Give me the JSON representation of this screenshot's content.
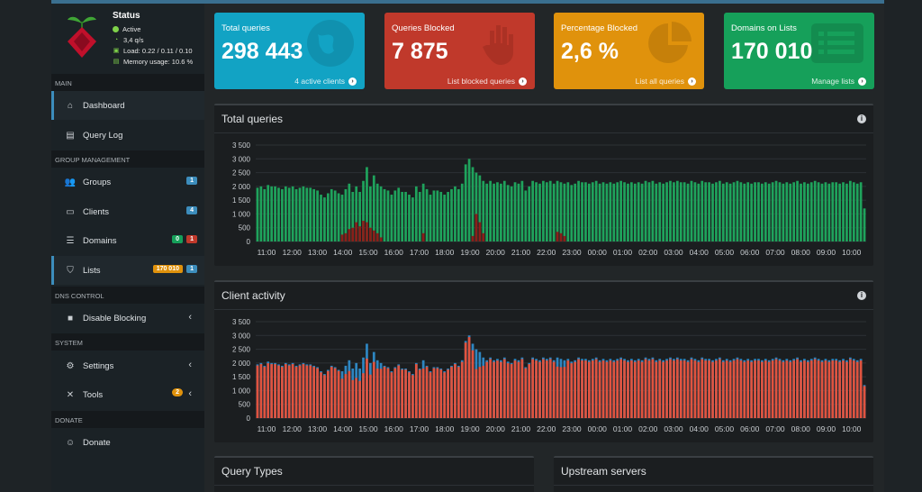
{
  "status": {
    "title": "Status",
    "lines": [
      "Active",
      "3,4 q/s",
      "Load: 0.22 / 0.11 / 0.10",
      "Memory usage: 10.6 %"
    ]
  },
  "sidebar": {
    "sections": {
      "main": "MAIN",
      "group": "GROUP MANAGEMENT",
      "dns": "DNS CONTROL",
      "system": "SYSTEM",
      "donate": "DONATE"
    },
    "items": {
      "dashboard": "Dashboard",
      "querylog": "Query Log",
      "groups": "Groups",
      "groups_badge": "1",
      "clients": "Clients",
      "clients_badge": "4",
      "domains": "Domains",
      "domains_badge_green": "0",
      "domains_badge_red": "1",
      "lists": "Lists",
      "lists_badge_orange": "170 010",
      "lists_badge_blue": "1",
      "disable": "Disable Blocking",
      "settings": "Settings",
      "tools": "Tools",
      "tools_badge": "2",
      "donate": "Donate"
    }
  },
  "stats": {
    "total": {
      "label": "Total queries",
      "value": "298 443",
      "footer": "4 active clients",
      "color": "#12a3c4"
    },
    "blocked": {
      "label": "Queries Blocked",
      "value": "7 875",
      "footer": "List blocked queries",
      "color": "#c0392b"
    },
    "percent": {
      "label": "Percentage Blocked",
      "value": "2,6 %",
      "footer": "List all queries",
      "color": "#e0920c"
    },
    "domains": {
      "label": "Domains on Lists",
      "value": "170 010",
      "footer": "Manage lists",
      "color": "#16a05a"
    }
  },
  "panels": {
    "total_queries": "Total queries",
    "client_activity": "Client activity",
    "query_types": "Query Types",
    "upstream": "Upstream servers"
  },
  "chart_data": [
    {
      "type": "bar",
      "title": "Total queries",
      "stacked": true,
      "ylim": [
        0,
        3500
      ],
      "yticks": [
        "0",
        "500",
        "1 000",
        "1 500",
        "2 000",
        "2 500",
        "3 000",
        "3 500"
      ],
      "xticks": [
        "11:00",
        "12:00",
        "13:00",
        "14:00",
        "15:00",
        "16:00",
        "17:00",
        "18:00",
        "19:00",
        "20:00",
        "21:00",
        "22:00",
        "23:00",
        "00:00",
        "01:00",
        "02:00",
        "03:00",
        "04:00",
        "05:00",
        "06:00",
        "07:00",
        "08:00",
        "09:00",
        "10:00"
      ],
      "series_colors": {
        "permitted": "#1fa35c",
        "blocked": "#8b1f1a"
      },
      "totals": [
        1950,
        2000,
        1900,
        2050,
        2000,
        2000,
        1950,
        1900,
        2000,
        1950,
        2000,
        1900,
        1950,
        2000,
        1950,
        1950,
        1900,
        1850,
        1700,
        1600,
        1750,
        1900,
        1850,
        1750,
        1700,
        1900,
        2100,
        1800,
        2000,
        1800,
        2200,
        2700,
        2000,
        2400,
        2100,
        2000,
        1900,
        1850,
        1700,
        1850,
        1950,
        1800,
        1800,
        1700,
        1600,
        2000,
        1800,
        2100,
        1900,
        1700,
        1850,
        1850,
        1800,
        1700,
        1800,
        1900,
        2000,
        1900,
        2100,
        2800,
        3000,
        2700,
        2500,
        2400,
        2200,
        2100,
        2200,
        2100,
        2150,
        2100,
        2200,
        2050,
        2000,
        2150,
        2100,
        2200,
        1850,
        2000,
        2200,
        2150,
        2100,
        2200,
        2150,
        2200,
        2100,
        2200,
        2150,
        2100,
        2150,
        2050,
        2100,
        2200,
        2150,
        2150,
        2100,
        2150,
        2200,
        2100,
        2150,
        2100,
        2150,
        2100,
        2150,
        2200,
        2150,
        2100,
        2150,
        2100,
        2150,
        2100,
        2200,
        2150,
        2200,
        2100,
        2150,
        2100,
        2150,
        2200,
        2150,
        2200,
        2150,
        2150,
        2100,
        2200,
        2150,
        2100,
        2200,
        2150,
        2150,
        2100,
        2150,
        2200,
        2100,
        2150,
        2100,
        2150,
        2200,
        2150,
        2100,
        2150,
        2100,
        2150,
        2150,
        2100,
        2150,
        2100,
        2150,
        2200,
        2150,
        2100,
        2150,
        2100,
        2150,
        2200,
        2100,
        2150,
        2100,
        2150,
        2200,
        2150,
        2100,
        2150,
        2100,
        2150,
        2150,
        2100,
        2150,
        2100,
        2200,
        2150,
        2100,
        2150,
        1200
      ],
      "blocked": [
        0,
        0,
        0,
        0,
        0,
        0,
        0,
        0,
        0,
        0,
        0,
        0,
        0,
        0,
        0,
        0,
        0,
        0,
        0,
        0,
        0,
        0,
        0,
        0,
        250,
        300,
        450,
        500,
        700,
        550,
        750,
        700,
        500,
        400,
        300,
        150,
        0,
        0,
        0,
        0,
        0,
        0,
        0,
        0,
        0,
        0,
        0,
        300,
        0,
        0,
        0,
        0,
        0,
        0,
        0,
        0,
        0,
        0,
        0,
        0,
        0,
        200,
        1000,
        700,
        300,
        0,
        0,
        0,
        0,
        0,
        0,
        0,
        0,
        0,
        0,
        0,
        0,
        0,
        0,
        0,
        0,
        0,
        0,
        0,
        0,
        350,
        300,
        200,
        0,
        0,
        0,
        0,
        0,
        0,
        0,
        0,
        0,
        0,
        0,
        0,
        0,
        0,
        0,
        0,
        0,
        0,
        0,
        0,
        0,
        0,
        0,
        0,
        0,
        0,
        0,
        0,
        0,
        0,
        0,
        0,
        0,
        0,
        0,
        0,
        0,
        0,
        0,
        0,
        0,
        0,
        0,
        0,
        0,
        0,
        0,
        0,
        0,
        0,
        0,
        0,
        0,
        0,
        0,
        0,
        0,
        0,
        0,
        0,
        0,
        0,
        0,
        0,
        0,
        0,
        0,
        0,
        0,
        0,
        0,
        0,
        0,
        0,
        0,
        0,
        0,
        0,
        0,
        0,
        0,
        0,
        0,
        0,
        0,
        0,
        0,
        0,
        0,
        0,
        0,
        0,
        0,
        0,
        0,
        0,
        0,
        0
      ]
    },
    {
      "type": "bar",
      "title": "Client activity",
      "stacked": true,
      "ylim": [
        0,
        3500
      ],
      "yticks": [
        "0",
        "500",
        "1 000",
        "1 500",
        "2 000",
        "2 500",
        "3 000",
        "3 500"
      ],
      "xticks": [
        "11:00",
        "12:00",
        "13:00",
        "14:00",
        "15:00",
        "16:00",
        "17:00",
        "18:00",
        "19:00",
        "20:00",
        "21:00",
        "22:00",
        "23:00",
        "00:00",
        "01:00",
        "02:00",
        "03:00",
        "04:00",
        "05:00",
        "06:00",
        "07:00",
        "08:00",
        "09:00",
        "10:00"
      ],
      "series_colors": {
        "client_a": "#e0533f",
        "client_b": "#2e86c1"
      }
    }
  ]
}
